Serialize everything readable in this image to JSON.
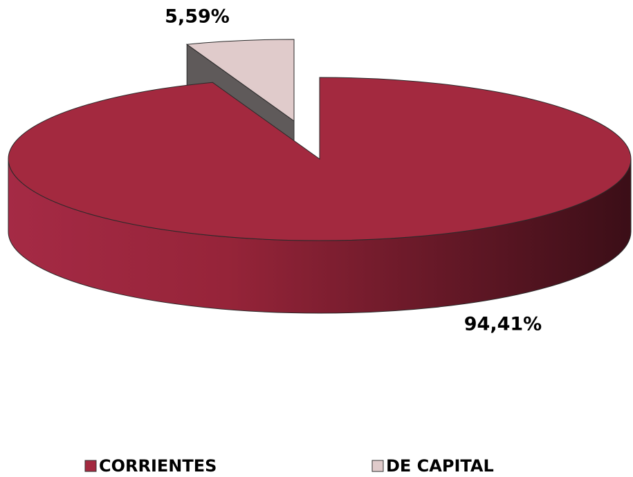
{
  "chart_data": {
    "type": "pie",
    "categories": [
      "CORRIENTES",
      "DE CAPITAL"
    ],
    "values": [
      94.41,
      5.59
    ],
    "value_labels": [
      "94,41%",
      "5,59%"
    ],
    "colors": [
      "#a3293f",
      "#e0cbcb"
    ],
    "legend": "bottom"
  }
}
